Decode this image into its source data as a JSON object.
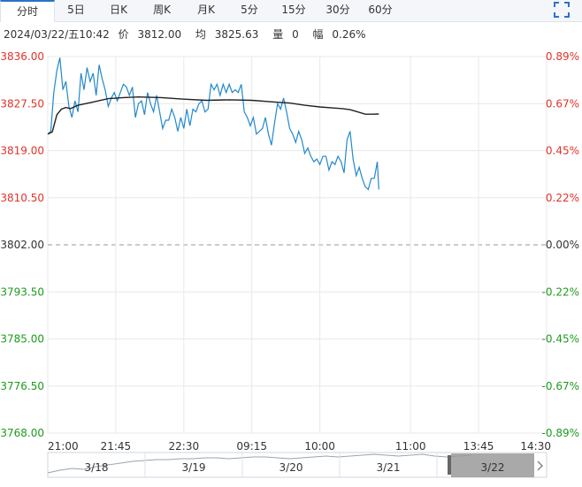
{
  "tabs": [
    {
      "label": "分时",
      "active": true
    },
    {
      "label": "5日",
      "active": false
    },
    {
      "label": "日K",
      "active": false
    },
    {
      "label": "周K",
      "active": false
    },
    {
      "label": "月K",
      "active": false
    },
    {
      "label": "5分",
      "active": false
    },
    {
      "label": "15分",
      "active": false
    },
    {
      "label": "30分",
      "active": false
    },
    {
      "label": "60分",
      "active": false
    }
  ],
  "info": {
    "datetime": "2024/03/22/五10:42",
    "price_label": "价",
    "price": "3812.00",
    "avg_label": "均",
    "avg": "3825.63",
    "vol_label": "量",
    "vol": "0",
    "amp_label": "幅",
    "amp": "0.26%"
  },
  "colors": {
    "up": "#e0332a",
    "down": "#1d9b1d",
    "neutral": "#333333",
    "price_line": "#2288cc",
    "avg_line": "#222222",
    "grid": "#e8e8e8"
  },
  "navigator": {
    "dates": [
      "3/18",
      "3/19",
      "3/20",
      "3/21",
      "3/22"
    ],
    "selected": "3/22"
  },
  "chart_data": {
    "type": "line",
    "prev_close": 3802.0,
    "ylim": [
      3768.0,
      3836.0
    ],
    "y_ticks_left": [
      "3836.00",
      "3827.50",
      "3819.00",
      "3810.50",
      "3802.00",
      "3793.50",
      "3785.00",
      "3776.50",
      "3768.00"
    ],
    "y_ticks_right": [
      "0.89%",
      "0.67%",
      "0.45%",
      "0.22%",
      "0.00%",
      "-0.22%",
      "-0.45%",
      "-0.67%",
      "-0.89%"
    ],
    "x_ticks": [
      "21:00",
      "21:45",
      "22:30",
      "09:15",
      "10:00",
      "11:00",
      "13:45",
      "14:30"
    ],
    "x_tick_index": [
      0,
      45,
      90,
      135,
      180,
      240,
      285,
      330
    ],
    "total_points": 330,
    "series": [
      {
        "key": "price",
        "x_index": [
          0,
          2,
          4,
          6,
          8,
          10,
          12,
          14,
          16,
          18,
          20,
          22,
          24,
          26,
          28,
          30,
          32,
          34,
          36,
          38,
          40,
          42,
          44,
          46,
          48,
          50,
          52,
          54,
          56,
          58,
          60,
          62,
          64,
          66,
          68,
          70,
          72,
          74,
          76,
          78,
          80,
          82,
          84,
          86,
          88,
          90,
          92,
          94,
          96,
          98,
          100,
          102,
          104,
          106,
          108,
          110,
          112,
          114,
          116,
          118,
          120,
          122,
          124,
          126,
          128,
          130,
          132,
          134,
          136,
          138,
          140,
          142,
          144,
          146,
          148,
          150,
          152,
          154,
          156,
          158,
          160,
          162,
          164,
          166,
          168,
          170,
          172,
          174,
          176,
          178,
          180,
          182,
          184,
          186,
          188,
          190,
          192,
          194,
          196,
          198,
          200,
          202,
          204,
          206,
          208,
          210,
          212,
          214,
          216,
          218,
          219
        ],
        "values": [
          3822.0,
          3822.5,
          3829.5,
          3833.5,
          3835.8,
          3830.0,
          3831.5,
          3827.0,
          3825.0,
          3828.0,
          3826.0,
          3833.0,
          3830.0,
          3834.0,
          3831.5,
          3833.0,
          3829.0,
          3834.5,
          3832.0,
          3830.0,
          3827.0,
          3828.5,
          3829.5,
          3828.0,
          3829.5,
          3831.0,
          3830.5,
          3829.0,
          3830.5,
          3825.0,
          3827.5,
          3828.0,
          3825.5,
          3829.5,
          3827.5,
          3826.0,
          3829.0,
          3826.0,
          3823.0,
          3824.5,
          3824.5,
          3826.5,
          3825.0,
          3822.5,
          3825.0,
          3823.0,
          3826.5,
          3823.5,
          3826.5,
          3826.0,
          3827.5,
          3828.0,
          3826.0,
          3826.5,
          3831.0,
          3830.0,
          3831.0,
          3829.0,
          3831.0,
          3829.5,
          3831.0,
          3829.5,
          3830.0,
          3829.5,
          3831.0,
          3826.0,
          3825.0,
          3823.5,
          3825.0,
          3822.0,
          3822.5,
          3823.0,
          3825.0,
          3822.0,
          3820.0,
          3824.0,
          3827.5,
          3826.5,
          3828.5,
          3826.0,
          3823.0,
          3822.0,
          3820.5,
          3822.5,
          3821.0,
          3818.5,
          3819.5,
          3818.0,
          3817.0,
          3817.5,
          3816.5,
          3818.0,
          3818.0,
          3815.5,
          3817.0,
          3816.5,
          3818.0,
          3817.0,
          3815.0,
          3821.0,
          3822.5,
          3817.5,
          3814.5,
          3816.0,
          3814.0,
          3812.5,
          3812.0,
          3814.0,
          3814.0,
          3817.0,
          3812.0
        ]
      },
      {
        "key": "average",
        "x_index": [
          0,
          3,
          6,
          9,
          12,
          15,
          20,
          30,
          40,
          50,
          60,
          75,
          90,
          105,
          120,
          135,
          150,
          160,
          170,
          180,
          190,
          195,
          200,
          205,
          210,
          215,
          219
        ],
        "values": [
          3822.0,
          3822.4,
          3825.5,
          3826.5,
          3826.8,
          3826.6,
          3827.2,
          3827.8,
          3828.4,
          3828.6,
          3828.7,
          3828.6,
          3828.3,
          3828.1,
          3828.2,
          3828.1,
          3827.8,
          3827.6,
          3827.2,
          3826.9,
          3826.7,
          3826.6,
          3826.4,
          3826.0,
          3825.6,
          3825.6,
          3825.63
        ]
      }
    ]
  }
}
